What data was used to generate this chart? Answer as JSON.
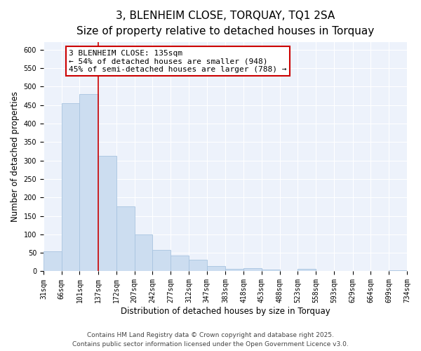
{
  "title": "3, BLENHEIM CLOSE, TORQUAY, TQ1 2SA",
  "subtitle": "Size of property relative to detached houses in Torquay",
  "xlabel": "Distribution of detached houses by size in Torquay",
  "ylabel": "Number of detached properties",
  "bar_edges": [
    31,
    66,
    101,
    137,
    172,
    207,
    242,
    277,
    312,
    347,
    383,
    418,
    453,
    488,
    523,
    558,
    593,
    629,
    664,
    699,
    734
  ],
  "bar_heights": [
    55,
    455,
    480,
    312,
    175,
    100,
    58,
    42,
    32,
    15,
    6,
    9,
    5,
    0,
    7,
    0,
    0,
    0,
    0,
    2
  ],
  "bar_color": "#ccddf0",
  "bar_edge_color": "#a8c4e0",
  "property_line_x": 137,
  "property_line_color": "#cc0000",
  "ylim": [
    0,
    620
  ],
  "xlim": [
    31,
    734
  ],
  "yticks": [
    0,
    50,
    100,
    150,
    200,
    250,
    300,
    350,
    400,
    450,
    500,
    550,
    600
  ],
  "annotation_text": "3 BLENHEIM CLOSE: 135sqm\n← 54% of detached houses are smaller (948)\n45% of semi-detached houses are larger (788) →",
  "annotation_box_color": "#ffffff",
  "annotation_box_edge": "#cc0000",
  "bg_color": "#edf2fb",
  "footer_line1": "Contains HM Land Registry data © Crown copyright and database right 2025.",
  "footer_line2": "Contains public sector information licensed under the Open Government Licence v3.0.",
  "title_fontsize": 11,
  "subtitle_fontsize": 9,
  "axis_label_fontsize": 8.5,
  "tick_fontsize": 7,
  "annotation_fontsize": 8,
  "footer_fontsize": 6.5
}
